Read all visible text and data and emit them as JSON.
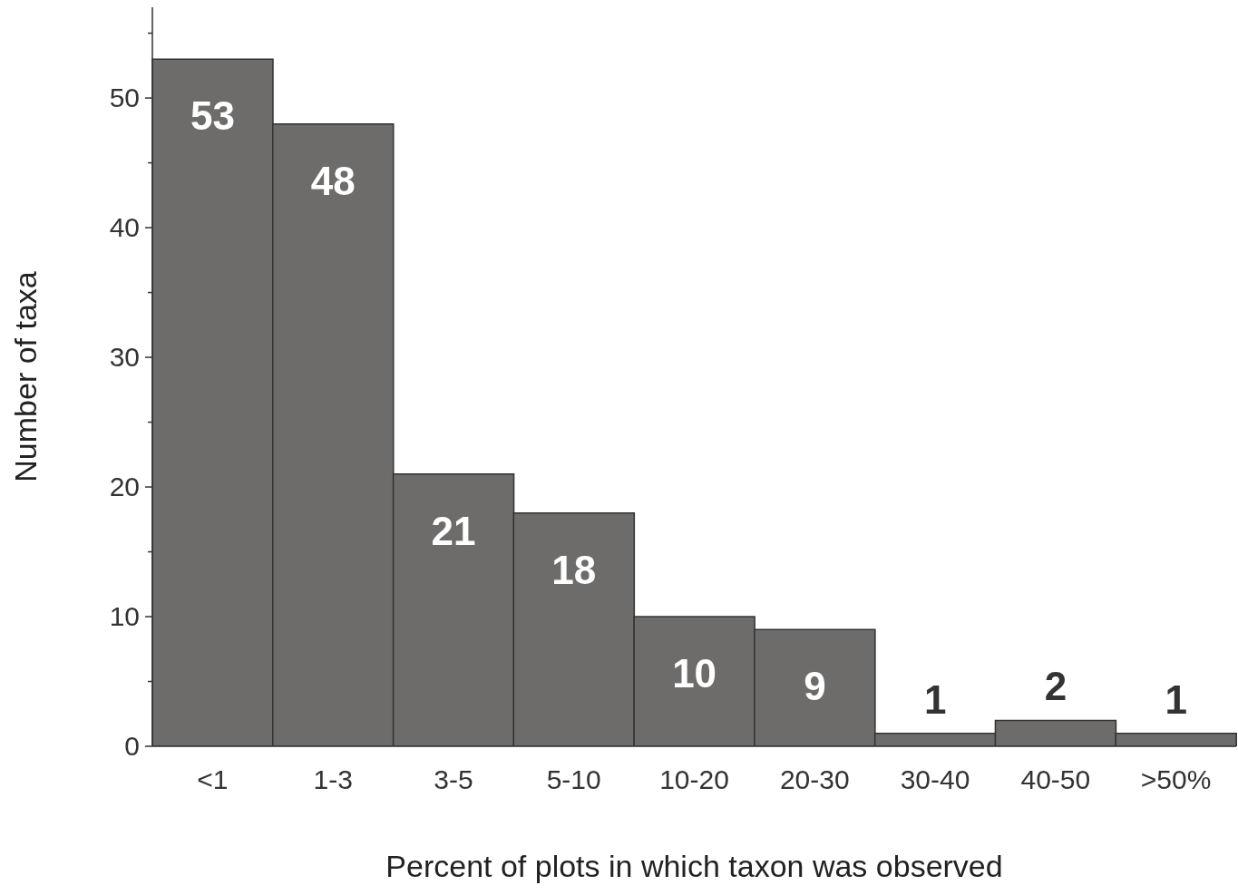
{
  "chart_data": {
    "type": "bar",
    "xlabel": "Percent of plots in which taxon was observed",
    "ylabel": "Number of taxa",
    "categories": [
      "<1",
      "1-3",
      "3-5",
      "5-10",
      "10-20",
      "20-30",
      "30-40",
      "40-50",
      ">50%"
    ],
    "values": [
      53,
      48,
      21,
      18,
      10,
      9,
      1,
      2,
      1
    ],
    "color": "#6e6c6a",
    "data_labels": true,
    "ylim": [
      0,
      57
    ],
    "yticks": [
      0,
      {
        "value": 5,
        "label": null
      },
      10,
      {
        "value": 15,
        "label": null
      },
      20,
      {
        "value": 25,
        "label": null
      },
      30,
      {
        "value": 35,
        "label": null
      },
      40,
      {
        "value": 45,
        "label": null
      },
      50,
      {
        "value": 55,
        "label": null
      }
    ],
    "grid": false
  }
}
